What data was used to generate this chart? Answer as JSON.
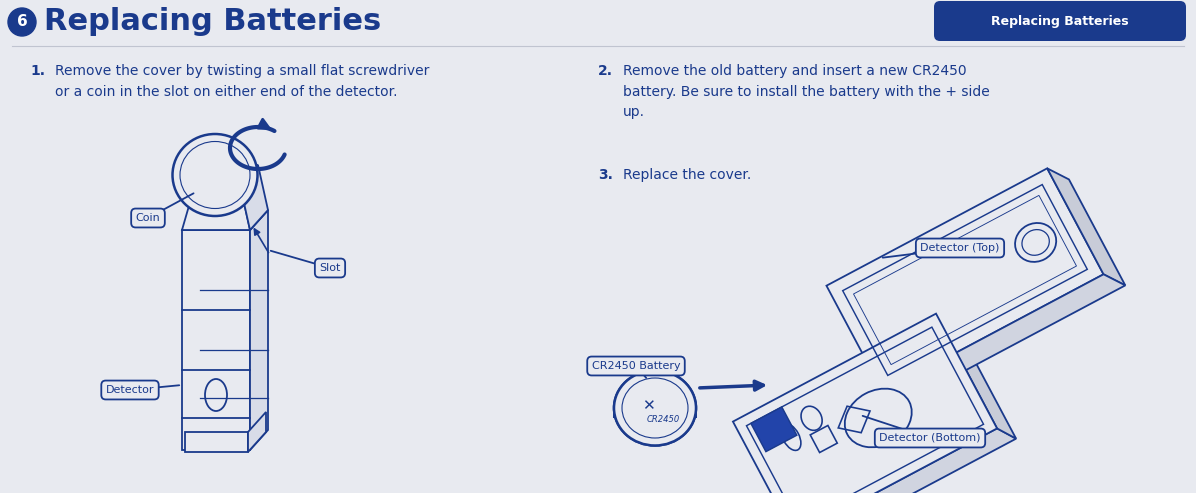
{
  "bg_color": "#e8eaf0",
  "title_text": "Replacing Batteries",
  "title_number": "6",
  "title_color": "#1a3a8c",
  "title_bg_color": "#1a3a8c",
  "header_pill_text": "Replacing Batteries",
  "header_pill_color": "#1a3a8c",
  "header_pill_text_color": "#ffffff",
  "step1_num": "1.",
  "step1_text": "Remove the cover by twisting a small flat screwdriver\nor a coin in the slot on either end of the detector.",
  "step2_num": "2.",
  "step2_text": "Remove the old battery and insert a new CR2450\nbattery. Be sure to install the battery with the + side\nup.",
  "step3_num": "3.",
  "step3_text": "Replace the cover.",
  "text_color": "#1a3a8c",
  "label_coin": "Coin",
  "label_slot": "Slot",
  "label_detector": "Detector",
  "label_detector_top": "Detector (Top)",
  "label_detector_bottom": "Detector (Bottom)",
  "label_battery": "CR2450 Battery",
  "line_color": "#1a3a8c",
  "line_width": 1.3,
  "arrow_color": "#1a3a8c"
}
